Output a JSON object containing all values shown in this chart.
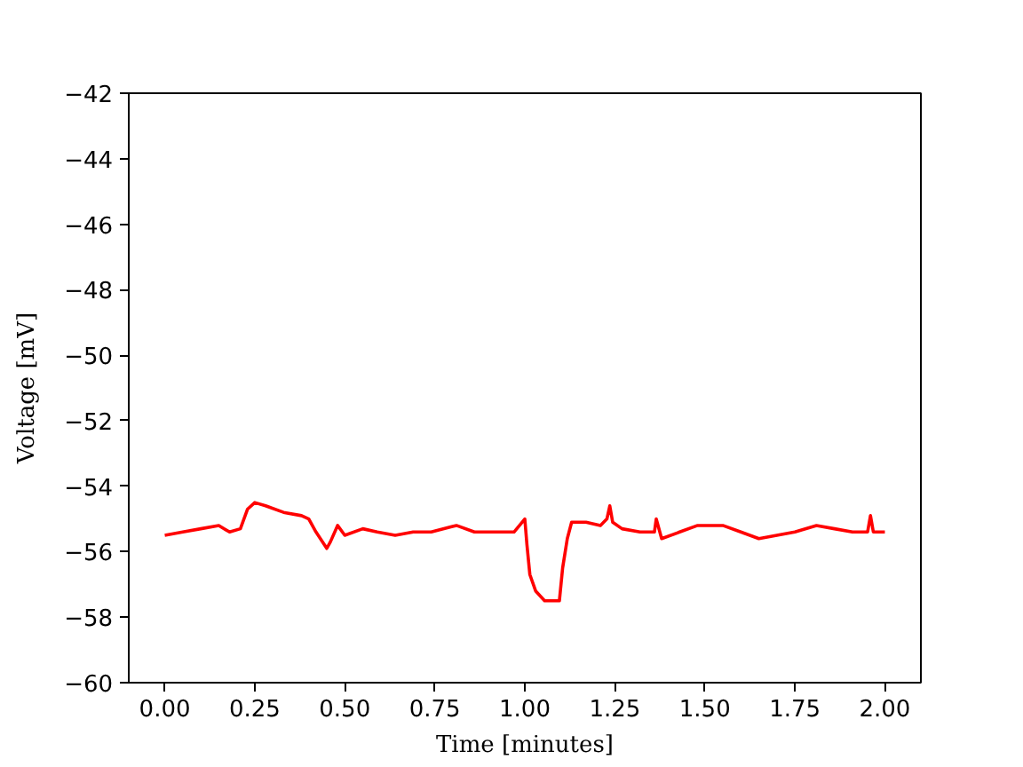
{
  "chart_data": {
    "type": "line",
    "xlabel": "Time [minutes]",
    "ylabel": "Voltage [mV]",
    "xlim": [
      -0.1,
      2.1
    ],
    "ylim": [
      -60,
      -42
    ],
    "xticks": [
      {
        "value": 0,
        "label": "0.00"
      },
      {
        "value": 0.25,
        "label": "0.25"
      },
      {
        "value": 0.5,
        "label": "0.50"
      },
      {
        "value": 0.75,
        "label": "0.75"
      },
      {
        "value": 1,
        "label": "1.00"
      },
      {
        "value": 1.25,
        "label": "1.25"
      },
      {
        "value": 1.5,
        "label": "1.50"
      },
      {
        "value": 1.75,
        "label": "1.75"
      },
      {
        "value": 2,
        "label": "2.00"
      }
    ],
    "yticks": [
      {
        "value": -60,
        "label": "−60"
      },
      {
        "value": -58,
        "label": "−58"
      },
      {
        "value": -56,
        "label": "−56"
      },
      {
        "value": -54,
        "label": "−54"
      },
      {
        "value": -52,
        "label": "−52"
      },
      {
        "value": -50,
        "label": "−50"
      },
      {
        "value": -48,
        "label": "−48"
      },
      {
        "value": -46,
        "label": "−46"
      },
      {
        "value": -44,
        "label": "−44"
      },
      {
        "value": -42,
        "label": "−42"
      }
    ],
    "grid": false,
    "series": [
      {
        "color": "#ff0000",
        "x": [
          0.0,
          0.05,
          0.1,
          0.15,
          0.18,
          0.21,
          0.23,
          0.25,
          0.28,
          0.33,
          0.38,
          0.4,
          0.42,
          0.45,
          0.46,
          0.48,
          0.5,
          0.55,
          0.59,
          0.64,
          0.69,
          0.74,
          0.81,
          0.86,
          0.92,
          0.97,
          1.0,
          1.006,
          1.014,
          1.03,
          1.055,
          1.08,
          1.096,
          1.105,
          1.118,
          1.13,
          1.17,
          1.21,
          1.228,
          1.236,
          1.244,
          1.27,
          1.32,
          1.36,
          1.365,
          1.38,
          1.43,
          1.48,
          1.55,
          1.6,
          1.65,
          1.7,
          1.75,
          1.81,
          1.86,
          1.91,
          1.952,
          1.96,
          1.968,
          2.0
        ],
        "values": [
          -55.5,
          -55.4,
          -55.3,
          -55.2,
          -55.4,
          -55.3,
          -54.7,
          -54.5,
          -54.6,
          -54.8,
          -54.9,
          -55.0,
          -55.4,
          -55.9,
          -55.7,
          -55.2,
          -55.5,
          -55.3,
          -55.4,
          -55.5,
          -55.4,
          -55.4,
          -55.2,
          -55.4,
          -55.4,
          -55.4,
          -55.0,
          -55.8,
          -56.7,
          -57.2,
          -57.5,
          -57.5,
          -57.5,
          -56.5,
          -55.6,
          -55.1,
          -55.1,
          -55.2,
          -55.0,
          -54.6,
          -55.1,
          -55.3,
          -55.4,
          -55.4,
          -55.0,
          -55.6,
          -55.4,
          -55.2,
          -55.2,
          -55.4,
          -55.6,
          -55.5,
          -55.4,
          -55.2,
          -55.3,
          -55.4,
          -55.4,
          -54.9,
          -55.4,
          -55.4
        ]
      }
    ]
  }
}
